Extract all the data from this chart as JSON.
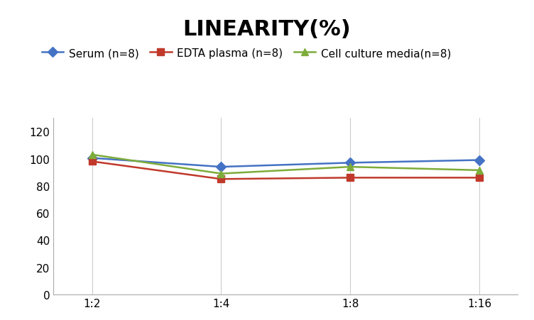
{
  "title": "LINEARITY(%)",
  "title_fontsize": 22,
  "title_fontweight": "bold",
  "x_labels": [
    "1:2",
    "1:4",
    "1:8",
    "1:16"
  ],
  "x_positions": [
    0,
    1,
    2,
    3
  ],
  "series": [
    {
      "label": "Serum (n=8)",
      "values": [
        100.5,
        94.0,
        97.0,
        99.0
      ],
      "color": "#4472c4",
      "marker": "D",
      "markersize": 7,
      "linewidth": 1.8,
      "zorder": 3
    },
    {
      "label": "EDTA plasma (n=8)",
      "values": [
        98.0,
        85.0,
        86.0,
        86.0
      ],
      "color": "#c0392b",
      "marker": "s",
      "markersize": 7,
      "linewidth": 1.8,
      "zorder": 3
    },
    {
      "label": "Cell culture media(n=8)",
      "values": [
        103.0,
        89.0,
        94.0,
        91.5
      ],
      "color": "#7dac3a",
      "marker": "^",
      "markersize": 7,
      "linewidth": 1.8,
      "zorder": 3
    }
  ],
  "ylim": [
    0,
    130
  ],
  "yticks": [
    0,
    20,
    40,
    60,
    80,
    100,
    120
  ],
  "grid_color": "#cccccc",
  "background_color": "#ffffff",
  "legend_fontsize": 11,
  "axis_fontsize": 11
}
